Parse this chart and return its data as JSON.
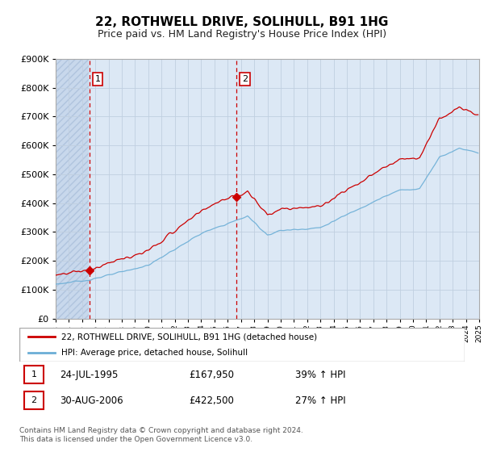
{
  "title": "22, ROTHWELL DRIVE, SOLIHULL, B91 1HG",
  "subtitle": "Price paid vs. HM Land Registry's House Price Index (HPI)",
  "ylim": [
    0,
    900000
  ],
  "yticks": [
    0,
    100000,
    200000,
    300000,
    400000,
    500000,
    600000,
    700000,
    800000,
    900000
  ],
  "xlim_start": 1993,
  "xlim_end": 2025,
  "sale1_year": 1995.56,
  "sale1_price": 167950,
  "sale2_year": 2006.66,
  "sale2_price": 422500,
  "hpi_line_color": "#6baed6",
  "price_line_color": "#cc0000",
  "vline_color": "#cc0000",
  "legend_line1": "22, ROTHWELL DRIVE, SOLIHULL, B91 1HG (detached house)",
  "legend_line2": "HPI: Average price, detached house, Solihull",
  "table_row1": [
    "1",
    "24-JUL-1995",
    "£167,950",
    "39% ↑ HPI"
  ],
  "table_row2": [
    "2",
    "30-AUG-2006",
    "£422,500",
    "27% ↑ HPI"
  ],
  "footer": "Contains HM Land Registry data © Crown copyright and database right 2024.\nThis data is licensed under the Open Government Licence v3.0.",
  "title_fontsize": 11,
  "subtitle_fontsize": 9,
  "axis_fontsize": 8
}
